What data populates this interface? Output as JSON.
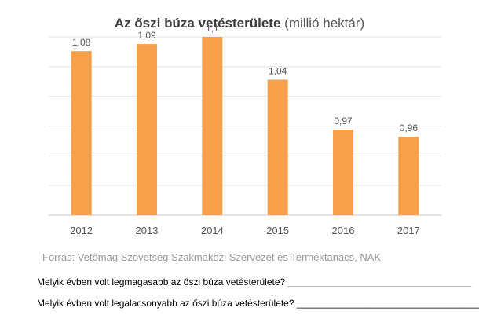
{
  "chart_data": {
    "type": "bar",
    "title": "Az őszi búza vetésterülete",
    "unit_note": "(millió hektár)",
    "categories": [
      "2012",
      "2013",
      "2014",
      "2015",
      "2016",
      "2017"
    ],
    "values": [
      1.08,
      1.09,
      1.1,
      1.04,
      0.97,
      0.96
    ],
    "value_labels": [
      "1,08",
      "1,09",
      "1,1",
      "1,04",
      "0,97",
      "0,96"
    ],
    "ylim": [
      0.85,
      1.1
    ],
    "grid": true,
    "bar_color": "#f7a04b",
    "xlabel": "",
    "ylabel": ""
  },
  "source": "Forrás: Vetőmag Szövetség Szakmaközi Szervezet és Terméktanács, NAK",
  "questions": {
    "q1": "Melyik évben volt legmagasabb az őszi búza vetésterülete? ___________________________________",
    "q2": "Melyik évben volt legalacsonyabb az őszi búza vetésterülete? ___________________________________"
  }
}
